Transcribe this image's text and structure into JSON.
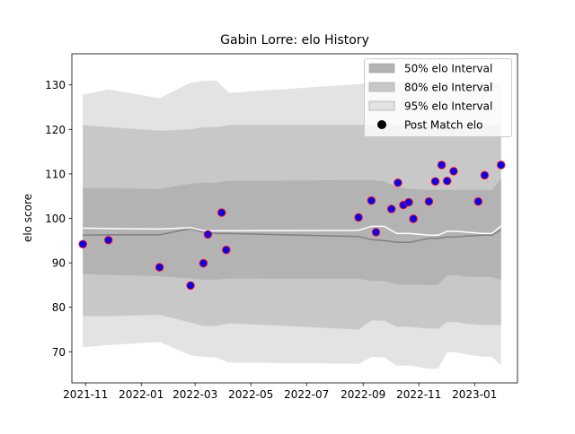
{
  "chart_data": {
    "type": "line",
    "title": "Gabin Lorre: elo History",
    "xlabel": "",
    "ylabel": "elo score",
    "xlim": [
      "2021-10-17",
      "2023-02-17"
    ],
    "ylim": [
      63,
      137
    ],
    "x_ticks": [
      "2021-11",
      "2022-01",
      "2022-03",
      "2022-05",
      "2022-07",
      "2022-09",
      "2022-11",
      "2023-01"
    ],
    "y_ticks": [
      70,
      80,
      90,
      100,
      110,
      120,
      130
    ],
    "grid": false,
    "legend": {
      "position": "top-right",
      "entries": [
        "50% elo Interval",
        "80% elo Interval",
        "95% elo Interval",
        "Post Match elo"
      ]
    },
    "colors": {
      "band_50": "#b3b3b3",
      "band_80": "#c8c8c8",
      "band_95": "#e3e3e3",
      "mean_line": "#808080",
      "median_line": "#ffffff",
      "point_fill": "#0000ff",
      "point_edge": "#ff0000"
    },
    "series": [
      {
        "name": "95% elo Interval",
        "x": [
          "2021-10-29",
          "2021-11-26",
          "2022-01-21",
          "2022-02-24",
          "2022-03-10",
          "2022-03-24",
          "2022-04-07",
          "2022-08-27",
          "2022-09-10",
          "2022-09-24",
          "2022-10-08",
          "2022-10-22",
          "2022-11-12",
          "2022-11-22",
          "2022-12-02",
          "2022-12-12",
          "2022-12-23",
          "2023-01-10",
          "2023-01-20",
          "2023-01-30"
        ],
        "upper": [
          127.8,
          129,
          127,
          130.5,
          130.9,
          131,
          128.2,
          130.2,
          130.5,
          130.5,
          130.5,
          130.5,
          130.5,
          130.5,
          130.5,
          130.5,
          130.5,
          130.5,
          130.5,
          130.5
        ],
        "lower": [
          71,
          71.5,
          72.2,
          69.2,
          68.9,
          68.7,
          67.6,
          67.3,
          68.8,
          68.8,
          66.9,
          66.9,
          66.2,
          66.2,
          69.9,
          69.9,
          69.4,
          68.9,
          68.9,
          66.9
        ]
      },
      {
        "name": "80% elo Interval",
        "x": [
          "2021-10-29",
          "2021-11-26",
          "2022-01-21",
          "2022-02-24",
          "2022-03-10",
          "2022-03-24",
          "2022-04-07",
          "2022-08-27",
          "2022-09-10",
          "2022-09-24",
          "2022-10-08",
          "2022-10-22",
          "2022-11-12",
          "2022-11-22",
          "2022-12-02",
          "2022-12-12",
          "2022-12-23",
          "2023-01-10",
          "2023-01-20",
          "2023-01-30"
        ],
        "upper": [
          121,
          120.5,
          119.7,
          120,
          120.5,
          120.5,
          121,
          121,
          121,
          121,
          121,
          121,
          121,
          121,
          121,
          121,
          121,
          121,
          121,
          121
        ],
        "lower": [
          78,
          78,
          78.3,
          76.6,
          75.8,
          75.8,
          76.4,
          75,
          77,
          77,
          75.6,
          75.6,
          75.2,
          75.2,
          76.7,
          76.7,
          76.3,
          76,
          76,
          76
        ]
      },
      {
        "name": "50% elo Interval",
        "x": [
          "2021-10-29",
          "2021-11-26",
          "2022-01-21",
          "2022-02-24",
          "2022-03-10",
          "2022-03-24",
          "2022-04-07",
          "2022-08-27",
          "2022-09-10",
          "2022-09-24",
          "2022-10-08",
          "2022-10-22",
          "2022-11-12",
          "2022-11-22",
          "2022-12-02",
          "2022-12-12",
          "2022-12-23",
          "2023-01-10",
          "2023-01-20",
          "2023-01-30"
        ],
        "upper": [
          106.8,
          106.8,
          106.6,
          107.8,
          108,
          108,
          108.4,
          108.6,
          108.6,
          108.3,
          107,
          106.6,
          106.4,
          106.4,
          106.4,
          106.4,
          106.4,
          106.4,
          106.4,
          109
        ],
        "lower": [
          87.5,
          87.3,
          87,
          86.5,
          86.2,
          86.2,
          86.5,
          86.4,
          85.9,
          85.9,
          85.1,
          85.1,
          85,
          85,
          87.2,
          87.2,
          86.9,
          86.8,
          86.8,
          86.1
        ]
      },
      {
        "name": "mean",
        "x": [
          "2021-10-29",
          "2021-11-26",
          "2022-01-21",
          "2022-02-24",
          "2022-03-10",
          "2022-03-24",
          "2022-04-07",
          "2022-08-27",
          "2022-09-10",
          "2022-09-24",
          "2022-10-08",
          "2022-10-22",
          "2022-11-12",
          "2022-11-22",
          "2022-12-02",
          "2022-12-12",
          "2022-12-23",
          "2023-01-10",
          "2023-01-20",
          "2023-01-30"
        ],
        "values": [
          96.2,
          96.3,
          96.3,
          97.7,
          96.9,
          96.6,
          96.6,
          95.9,
          95.2,
          95,
          94.6,
          94.6,
          95.5,
          95.5,
          95.8,
          95.8,
          96,
          96.2,
          96.2,
          97.4
        ]
      },
      {
        "name": "median",
        "x": [
          "2021-10-29",
          "2021-11-26",
          "2022-01-21",
          "2022-02-24",
          "2022-03-10",
          "2022-03-24",
          "2022-04-07",
          "2022-08-27",
          "2022-09-10",
          "2022-09-24",
          "2022-10-08",
          "2022-10-22",
          "2022-11-12",
          "2022-11-22",
          "2022-12-02",
          "2022-12-12",
          "2022-12-23",
          "2023-01-10",
          "2023-01-20",
          "2023-01-30"
        ],
        "values": [
          97.8,
          97.7,
          97.6,
          97.9,
          97.2,
          97.2,
          97.2,
          97.3,
          98.2,
          98.2,
          96.6,
          96.6,
          96.2,
          96.2,
          97.1,
          97.1,
          96.9,
          96.6,
          96.6,
          98.3
        ]
      },
      {
        "name": "Post Match elo",
        "x": [
          "2021-10-29",
          "2021-11-26",
          "2022-01-21",
          "2022-02-24",
          "2022-03-10",
          "2022-03-15",
          "2022-03-30",
          "2022-04-04",
          "2022-08-27",
          "2022-09-10",
          "2022-09-15",
          "2022-10-02",
          "2022-10-09",
          "2022-10-15",
          "2022-10-21",
          "2022-10-26",
          "2022-11-12",
          "2022-11-19",
          "2022-11-26",
          "2022-12-02",
          "2022-12-09",
          "2023-01-05",
          "2023-01-12",
          "2023-01-30"
        ],
        "values": [
          94.2,
          95.1,
          89,
          84.9,
          89.9,
          96.4,
          101.3,
          92.9,
          100.2,
          104,
          96.9,
          102.1,
          108,
          103,
          103.6,
          99.9,
          103.8,
          108.3,
          112,
          108.4,
          110.6,
          103.8,
          109.7,
          112
        ]
      }
    ]
  }
}
